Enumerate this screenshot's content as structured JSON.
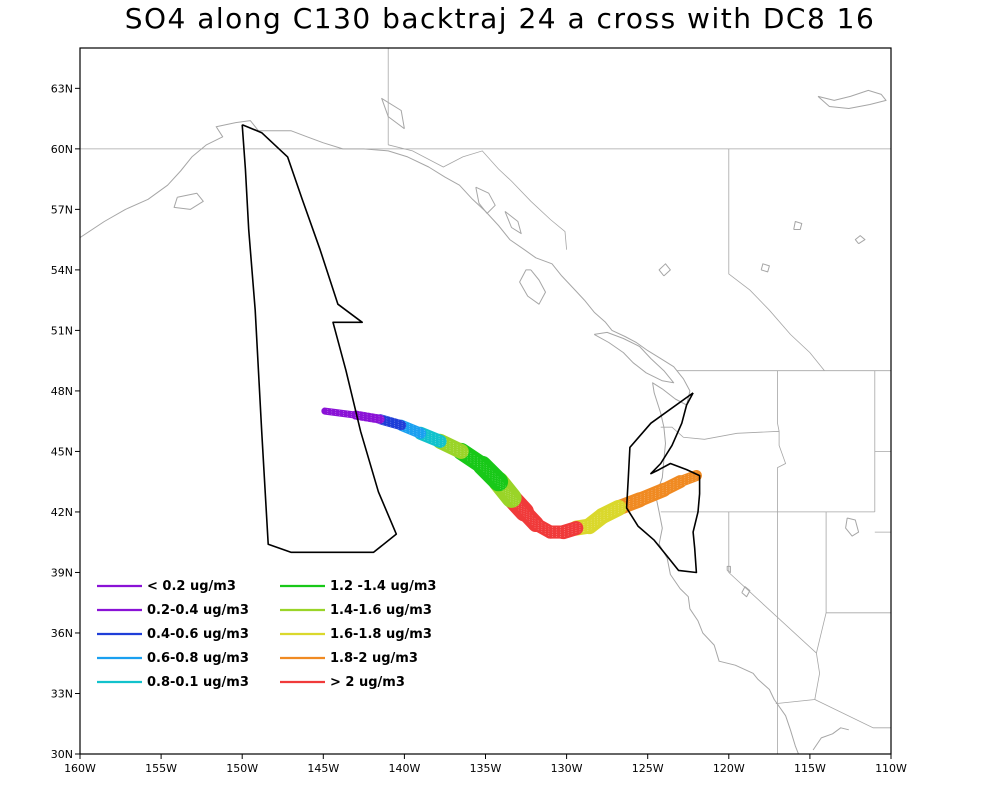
{
  "title": "SO4 along C130 backtraj 24 a cross with DC8 16",
  "axes": {
    "lon_range": [
      -160,
      -110
    ],
    "lat_range": [
      30,
      65
    ],
    "lon_ticks": [
      {
        "value": -160,
        "label": "160W"
      },
      {
        "value": -155,
        "label": "155W"
      },
      {
        "value": -150,
        "label": "150W"
      },
      {
        "value": -145,
        "label": "145W"
      },
      {
        "value": -140,
        "label": "140W"
      },
      {
        "value": -135,
        "label": "135W"
      },
      {
        "value": -130,
        "label": "130W"
      },
      {
        "value": -125,
        "label": "125W"
      },
      {
        "value": -120,
        "label": "120W"
      },
      {
        "value": -115,
        "label": "115W"
      },
      {
        "value": -110,
        "label": "110W"
      }
    ],
    "lat_ticks": [
      {
        "value": 30,
        "label": "30N"
      },
      {
        "value": 33,
        "label": "33N"
      },
      {
        "value": 36,
        "label": "36N"
      },
      {
        "value": 39,
        "label": "39N"
      },
      {
        "value": 42,
        "label": "42N"
      },
      {
        "value": 45,
        "label": "45N"
      },
      {
        "value": 48,
        "label": "48N"
      },
      {
        "value": 51,
        "label": "51N"
      },
      {
        "value": 54,
        "label": "54N"
      },
      {
        "value": 57,
        "label": "57N"
      },
      {
        "value": 60,
        "label": "60N"
      },
      {
        "value": 63,
        "label": "63N"
      }
    ]
  },
  "legend": [
    {
      "label": "< 0.2 ug/m3",
      "color": "#8a12d6"
    },
    {
      "label": "0.2-0.4 ug/m3",
      "color": "#8a12d6"
    },
    {
      "label": "0.4-0.6 ug/m3",
      "color": "#1f3ed8"
    },
    {
      "label": "0.6-0.8 ug/m3",
      "color": "#1aa0f0"
    },
    {
      "label": "0.8-0.1 ug/m3",
      "color": "#12c2cc"
    },
    {
      "label": "1.2 -1.4 ug/m3",
      "color": "#18c818"
    },
    {
      "label": "1.4-1.6 ug/m3",
      "color": "#9ad428"
    },
    {
      "label": "1.6-1.8 ug/m3",
      "color": "#dad82c"
    },
    {
      "label": "1.8-2 ug/m3",
      "color": "#f08a22"
    },
    {
      "label": "> 2 ug/m3",
      "color": "#f03a3a"
    }
  ],
  "colors": {
    "coastline": "#a6a6a6",
    "boundary": "#a6a6a6",
    "flight_track": "#000000"
  },
  "dc8_flight_track": [
    [
      -150.0,
      61.2
    ],
    [
      -148.8,
      60.8
    ],
    [
      -147.2,
      59.6
    ],
    [
      -146.3,
      57.5
    ],
    [
      -145.2,
      55.0
    ],
    [
      -144.1,
      52.3
    ],
    [
      -142.6,
      51.4
    ],
    [
      -144.4,
      51.4
    ],
    [
      -143.6,
      49.0
    ],
    [
      -142.7,
      46.0
    ],
    [
      -141.6,
      43.0
    ],
    [
      -140.5,
      40.9
    ],
    [
      -141.9,
      40.0
    ],
    [
      -147.0,
      40.0
    ],
    [
      -148.4,
      40.4
    ],
    [
      -148.8,
      46.0
    ],
    [
      -149.2,
      52.0
    ],
    [
      -149.6,
      56.0
    ],
    [
      -149.8,
      59.0
    ],
    [
      -150.0,
      61.2
    ]
  ],
  "c130_flight_track": [
    [
      -122.2,
      47.9
    ],
    [
      -124.8,
      46.4
    ],
    [
      -126.1,
      45.2
    ],
    [
      -126.2,
      43.6
    ],
    [
      -126.3,
      42.2
    ],
    [
      -125.6,
      41.3
    ],
    [
      -124.6,
      40.6
    ],
    [
      -123.8,
      39.8
    ],
    [
      -123.1,
      39.1
    ],
    [
      -122.0,
      39.0
    ],
    [
      -122.1,
      40.2
    ],
    [
      -122.2,
      41.0
    ],
    [
      -121.9,
      42.0
    ],
    [
      -121.8,
      42.9
    ],
    [
      -121.8,
      43.8
    ],
    [
      -122.6,
      44.1
    ],
    [
      -123.6,
      44.4
    ],
    [
      -124.3,
      44.1
    ],
    [
      -124.8,
      43.9
    ],
    [
      -124.2,
      44.4
    ],
    [
      -123.5,
      45.3
    ],
    [
      -122.9,
      46.4
    ],
    [
      -122.6,
      47.3
    ],
    [
      -122.2,
      47.9
    ]
  ],
  "back_trajectory": {
    "centerline": [
      [
        -122.0,
        43.8
      ],
      [
        -123.0,
        43.5
      ],
      [
        -124.0,
        43.1
      ],
      [
        -125.5,
        42.6
      ],
      [
        -126.8,
        42.2
      ],
      [
        -127.8,
        41.8
      ],
      [
        -128.6,
        41.3
      ],
      [
        -129.4,
        41.2
      ],
      [
        -130.2,
        41.0
      ],
      [
        -131.0,
        41.0
      ],
      [
        -131.9,
        41.4
      ],
      [
        -132.6,
        42.0
      ],
      [
        -133.4,
        42.7
      ],
      [
        -134.2,
        43.5
      ],
      [
        -135.2,
        44.3
      ],
      [
        -136.5,
        45.0
      ],
      [
        -137.8,
        45.5
      ],
      [
        -139.0,
        45.9
      ],
      [
        -140.2,
        46.3
      ],
      [
        -141.5,
        46.6
      ],
      [
        -143.0,
        46.8
      ],
      [
        -144.9,
        47.0
      ]
    ],
    "band_width_deg": [
      0.5,
      0.6,
      0.7,
      0.7,
      0.8,
      0.8,
      0.8,
      0.7,
      0.7,
      0.6,
      0.7,
      0.9,
      1.0,
      1.0,
      0.9,
      0.8,
      0.7,
      0.6,
      0.5,
      0.5,
      0.4,
      0.3
    ],
    "segment_colors": [
      "#f08a22",
      "#f08a22",
      "#f08a22",
      "#f08a22",
      "#dad82c",
      "#dad82c",
      "#dad82c",
      "#f03a3a",
      "#f03a3a",
      "#f03a3a",
      "#f03a3a",
      "#f03a3a",
      "#9ad428",
      "#18c818",
      "#18c818",
      "#9ad428",
      "#12c2cc",
      "#1aa0f0",
      "#1f3ed8",
      "#8a12d6",
      "#8a12d6"
    ]
  },
  "coastlines": [
    [
      [
        -160.0,
        55.6
      ],
      [
        -158.5,
        56.4
      ],
      [
        -157.2,
        57.0
      ],
      [
        -155.8,
        57.5
      ],
      [
        -154.6,
        58.2
      ],
      [
        -153.8,
        58.9
      ],
      [
        -153.1,
        59.6
      ],
      [
        -152.2,
        60.2
      ],
      [
        -151.2,
        60.6
      ],
      [
        -151.6,
        61.1
      ],
      [
        -150.4,
        61.3
      ],
      [
        -149.5,
        61.4
      ],
      [
        -149.0,
        60.9
      ],
      [
        -148.2,
        60.9
      ],
      [
        -147.0,
        60.9
      ],
      [
        -146.0,
        60.6
      ],
      [
        -145.0,
        60.3
      ],
      [
        -143.8,
        60.0
      ],
      [
        -142.5,
        60.0
      ],
      [
        -141.0,
        59.9
      ],
      [
        -139.8,
        59.6
      ],
      [
        -138.5,
        59.1
      ],
      [
        -137.5,
        58.6
      ],
      [
        -136.6,
        58.2
      ],
      [
        -135.8,
        57.5
      ],
      [
        -135.0,
        56.9
      ],
      [
        -134.2,
        56.2
      ],
      [
        -133.5,
        55.5
      ],
      [
        -132.6,
        55.0
      ],
      [
        -131.9,
        54.6
      ],
      [
        -130.9,
        54.3
      ],
      [
        -130.3,
        53.7
      ],
      [
        -129.6,
        53.1
      ],
      [
        -128.9,
        52.5
      ],
      [
        -128.3,
        51.9
      ],
      [
        -127.6,
        51.4
      ],
      [
        -127.2,
        51.0
      ],
      [
        -126.4,
        50.7
      ],
      [
        -125.7,
        50.4
      ],
      [
        -125.0,
        50.0
      ],
      [
        -124.2,
        49.6
      ],
      [
        -123.4,
        49.2
      ],
      [
        -122.8,
        48.6
      ],
      [
        -122.4,
        48.0
      ],
      [
        -122.6,
        47.3
      ],
      [
        -123.3,
        47.6
      ],
      [
        -124.1,
        48.1
      ],
      [
        -124.7,
        48.4
      ],
      [
        -124.6,
        47.9
      ],
      [
        -124.2,
        46.9
      ],
      [
        -124.0,
        46.2
      ],
      [
        -123.9,
        45.4
      ],
      [
        -124.0,
        44.6
      ],
      [
        -124.1,
        43.7
      ],
      [
        -124.5,
        42.8
      ],
      [
        -124.3,
        42.0
      ],
      [
        -124.1,
        41.2
      ],
      [
        -124.3,
        40.4
      ],
      [
        -123.8,
        39.7
      ],
      [
        -123.6,
        38.9
      ],
      [
        -123.0,
        38.2
      ],
      [
        -122.5,
        37.8
      ],
      [
        -122.4,
        37.2
      ],
      [
        -121.9,
        36.6
      ],
      [
        -121.6,
        36.0
      ],
      [
        -120.9,
        35.4
      ],
      [
        -120.6,
        34.6
      ],
      [
        -119.6,
        34.4
      ],
      [
        -118.5,
        34.0
      ],
      [
        -118.2,
        33.7
      ],
      [
        -117.5,
        33.2
      ],
      [
        -117.2,
        32.7
      ],
      [
        -116.5,
        31.9
      ],
      [
        -116.2,
        31.2
      ],
      [
        -115.9,
        30.4
      ],
      [
        -115.7,
        30.0
      ]
    ],
    [
      [
        -112.6,
        31.2
      ],
      [
        -113.1,
        31.3
      ],
      [
        -113.6,
        31.0
      ],
      [
        -114.3,
        30.8
      ],
      [
        -114.8,
        30.2
      ]
    ],
    [
      [
        -132.2,
        54.0
      ],
      [
        -131.7,
        53.5
      ],
      [
        -131.3,
        52.9
      ],
      [
        -131.7,
        52.3
      ],
      [
        -132.4,
        52.7
      ],
      [
        -132.9,
        53.4
      ],
      [
        -132.5,
        54.0
      ],
      [
        -132.2,
        54.0
      ]
    ],
    [
      [
        -128.3,
        50.8
      ],
      [
        -127.4,
        50.4
      ],
      [
        -126.5,
        49.9
      ],
      [
        -125.9,
        49.4
      ],
      [
        -125.1,
        48.9
      ],
      [
        -124.1,
        48.5
      ],
      [
        -123.4,
        48.4
      ],
      [
        -124.0,
        49.0
      ],
      [
        -124.8,
        49.6
      ],
      [
        -125.5,
        50.2
      ],
      [
        -126.5,
        50.6
      ],
      [
        -127.5,
        50.9
      ],
      [
        -128.3,
        50.8
      ]
    ],
    [
      [
        -154.0,
        57.6
      ],
      [
        -152.8,
        57.8
      ],
      [
        -152.4,
        57.4
      ],
      [
        -153.2,
        57.0
      ],
      [
        -154.2,
        57.1
      ],
      [
        -154.0,
        57.6
      ]
    ],
    [
      [
        -135.6,
        58.1
      ],
      [
        -134.8,
        57.8
      ],
      [
        -134.4,
        57.2
      ],
      [
        -134.9,
        56.8
      ],
      [
        -135.4,
        57.3
      ],
      [
        -135.6,
        58.1
      ]
    ],
    [
      [
        -133.8,
        56.9
      ],
      [
        -133.0,
        56.4
      ],
      [
        -132.8,
        55.8
      ],
      [
        -133.4,
        56.1
      ],
      [
        -133.8,
        56.9
      ]
    ],
    [
      [
        -140.0,
        61.0
      ],
      [
        -140.2,
        61.9
      ],
      [
        -141.4,
        62.5
      ],
      [
        -141.0,
        61.6
      ],
      [
        -140.0,
        61.0
      ]
    ],
    [
      [
        -124.0,
        53.7
      ],
      [
        -123.6,
        54.0
      ],
      [
        -123.9,
        54.3
      ],
      [
        -124.3,
        54.0
      ],
      [
        -124.0,
        53.7
      ]
    ],
    [
      [
        -118.0,
        54.0
      ],
      [
        -117.6,
        53.9
      ],
      [
        -117.5,
        54.2
      ],
      [
        -117.9,
        54.3
      ],
      [
        -118.0,
        54.0
      ]
    ],
    [
      [
        -116.0,
        56.0
      ],
      [
        -115.6,
        56.0
      ],
      [
        -115.5,
        56.3
      ],
      [
        -115.9,
        56.4
      ],
      [
        -116.0,
        56.0
      ]
    ],
    [
      [
        -112.0,
        55.3
      ],
      [
        -111.6,
        55.5
      ],
      [
        -111.9,
        55.7
      ],
      [
        -112.2,
        55.5
      ],
      [
        -112.0,
        55.3
      ]
    ],
    [
      [
        -114.5,
        62.6
      ],
      [
        -113.5,
        62.4
      ],
      [
        -112.5,
        62.6
      ],
      [
        -111.4,
        62.9
      ],
      [
        -110.6,
        62.7
      ],
      [
        -110.3,
        62.4
      ],
      [
        -111.3,
        62.2
      ],
      [
        -112.6,
        62.0
      ],
      [
        -113.8,
        62.1
      ],
      [
        -114.5,
        62.6
      ]
    ],
    [
      [
        -119.2,
        38.0
      ],
      [
        -118.9,
        37.8
      ],
      [
        -118.7,
        38.1
      ],
      [
        -119.0,
        38.3
      ],
      [
        -119.2,
        38.0
      ]
    ],
    [
      [
        -120.1,
        39.1
      ],
      [
        -119.9,
        39.0
      ],
      [
        -119.9,
        39.3
      ],
      [
        -120.1,
        39.3
      ],
      [
        -120.1,
        39.1
      ]
    ],
    [
      [
        -112.7,
        41.7
      ],
      [
        -112.2,
        41.6
      ],
      [
        -112.0,
        41.0
      ],
      [
        -112.4,
        40.8
      ],
      [
        -112.8,
        41.2
      ],
      [
        -112.7,
        41.7
      ]
    ]
  ],
  "boundaries": [
    [
      [
        -141.0,
        65.0
      ],
      [
        -141.0,
        60.2
      ]
    ],
    [
      [
        -141.0,
        60.2
      ],
      [
        -139.5,
        59.9
      ],
      [
        -137.6,
        59.1
      ],
      [
        -136.4,
        59.6
      ],
      [
        -135.2,
        59.9
      ],
      [
        -134.2,
        59.0
      ],
      [
        -133.4,
        58.4
      ],
      [
        -132.2,
        57.4
      ],
      [
        -131.0,
        56.5
      ],
      [
        -130.1,
        55.9
      ],
      [
        -130.0,
        55.0
      ]
    ],
    [
      [
        -123.2,
        49.0
      ],
      [
        -110.0,
        49.0
      ]
    ],
    [
      [
        -120.0,
        60.0
      ],
      [
        -120.0,
        53.8
      ],
      [
        -118.7,
        53.0
      ],
      [
        -117.5,
        52.0
      ],
      [
        -116.2,
        50.8
      ],
      [
        -115.0,
        49.9
      ],
      [
        -114.1,
        49.0
      ]
    ],
    [
      [
        -110.0,
        60.0
      ],
      [
        -110.0,
        49.0
      ]
    ],
    [
      [
        -160.0,
        60.0
      ],
      [
        -110.0,
        60.0
      ]
    ],
    [
      [
        -124.2,
        46.2
      ],
      [
        -123.5,
        46.2
      ],
      [
        -122.8,
        45.7
      ],
      [
        -121.5,
        45.6
      ],
      [
        -119.5,
        45.9
      ],
      [
        -116.9,
        46.0
      ],
      [
        -116.9,
        45.3
      ],
      [
        -116.5,
        44.4
      ],
      [
        -117.0,
        44.2
      ],
      [
        -117.0,
        42.0
      ]
    ],
    [
      [
        -124.2,
        42.0
      ],
      [
        -111.0,
        42.0
      ]
    ],
    [
      [
        -117.0,
        49.0
      ],
      [
        -117.0,
        46.4
      ],
      [
        -116.9,
        46.0
      ]
    ],
    [
      [
        -120.0,
        42.0
      ],
      [
        -120.0,
        39.0
      ],
      [
        -114.6,
        35.0
      ]
    ],
    [
      [
        -117.0,
        42.0
      ],
      [
        -117.0,
        30.0
      ]
    ],
    [
      [
        -114.0,
        42.0
      ],
      [
        -114.0,
        37.0
      ],
      [
        -114.6,
        35.0
      ],
      [
        -114.4,
        34.0
      ],
      [
        -114.7,
        32.7
      ],
      [
        -117.1,
        32.5
      ]
    ],
    [
      [
        -111.0,
        49.0
      ],
      [
        -111.0,
        44.5
      ],
      [
        -111.0,
        42.0
      ]
    ],
    [
      [
        -114.7,
        32.7
      ],
      [
        -111.1,
        31.3
      ],
      [
        -110.0,
        31.3
      ]
    ],
    [
      [
        -111.0,
        45.0
      ],
      [
        -110.0,
        45.0
      ]
    ],
    [
      [
        -111.0,
        41.0
      ],
      [
        -110.0,
        41.0
      ]
    ],
    [
      [
        -114.0,
        37.0
      ],
      [
        -110.0,
        37.0
      ]
    ]
  ]
}
